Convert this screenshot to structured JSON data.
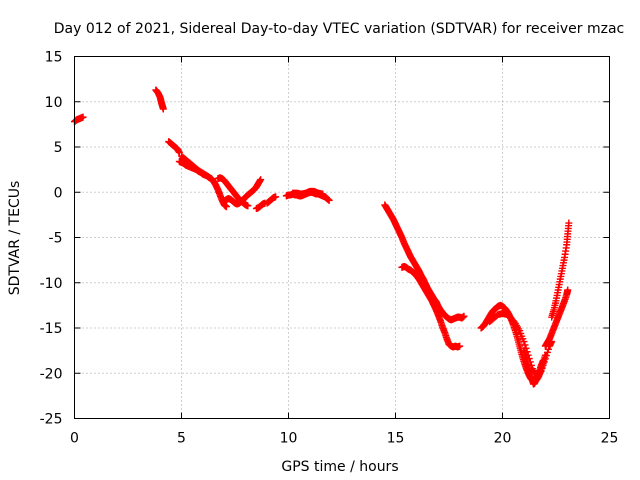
{
  "chart_data": {
    "type": "scatter",
    "title": "Day 012 of 2021, Sidereal Day-to-day VTEC variation (SDTVAR) for receiver mzac",
    "xlabel": "GPS time / hours",
    "ylabel": "SDTVAR / TECUs",
    "xlim": [
      0,
      25
    ],
    "ylim": [
      -25,
      15
    ],
    "xticks": [
      0,
      5,
      10,
      15,
      20,
      25
    ],
    "yticks": [
      -25,
      -20,
      -15,
      -10,
      -5,
      0,
      5,
      10,
      15
    ],
    "grid": true,
    "marker": "plus",
    "color": "#ff0000",
    "series": [
      {
        "name": "SDTVAR",
        "segments": [
          [
            [
              0.0,
              7.8
            ],
            [
              0.1,
              8.0
            ],
            [
              0.2,
              8.1
            ],
            [
              0.3,
              8.2
            ],
            [
              0.4,
              8.3
            ]
          ],
          [
            [
              3.8,
              11.3
            ],
            [
              3.9,
              11.0
            ],
            [
              4.0,
              10.5
            ],
            [
              4.05,
              10.0
            ],
            [
              4.1,
              9.6
            ],
            [
              4.15,
              9.2
            ]
          ],
          [
            [
              4.4,
              5.6
            ],
            [
              4.5,
              5.4
            ],
            [
              4.6,
              5.2
            ],
            [
              4.7,
              5.0
            ],
            [
              4.8,
              4.8
            ],
            [
              4.9,
              4.4
            ]
          ],
          [
            [
              4.9,
              3.4
            ],
            [
              5.0,
              3.3
            ],
            [
              5.1,
              3.2
            ],
            [
              5.2,
              3.0
            ],
            [
              5.3,
              2.9
            ],
            [
              5.4,
              2.8
            ],
            [
              5.5,
              2.7
            ],
            [
              5.6,
              2.6
            ],
            [
              5.7,
              2.5
            ],
            [
              5.8,
              2.3
            ],
            [
              5.9,
              2.2
            ],
            [
              6.0,
              2.0
            ],
            [
              6.1,
              1.9
            ],
            [
              6.2,
              1.8
            ],
            [
              6.3,
              1.6
            ],
            [
              6.4,
              1.5
            ],
            [
              6.5,
              1.2
            ],
            [
              6.6,
              0.8
            ],
            [
              6.7,
              0.3
            ],
            [
              6.8,
              -0.3
            ],
            [
              6.9,
              -0.9
            ],
            [
              7.0,
              -1.4
            ],
            [
              7.1,
              -1.6
            ]
          ],
          [
            [
              5.0,
              4.0
            ],
            [
              5.2,
              3.6
            ],
            [
              5.4,
              3.2
            ],
            [
              5.6,
              2.8
            ],
            [
              5.8,
              2.4
            ],
            [
              6.0,
              2.1
            ],
            [
              6.2,
              1.8
            ],
            [
              6.4,
              1.5
            ]
          ],
          [
            [
              6.7,
              1.5
            ],
            [
              6.8,
              1.6
            ],
            [
              6.9,
              1.5
            ],
            [
              7.0,
              1.3
            ],
            [
              7.1,
              1.0
            ],
            [
              7.2,
              0.7
            ],
            [
              7.3,
              0.4
            ],
            [
              7.4,
              0.1
            ],
            [
              7.5,
              -0.2
            ],
            [
              7.6,
              -0.5
            ],
            [
              7.7,
              -0.8
            ],
            [
              7.8,
              -1.0
            ],
            [
              7.9,
              -1.2
            ],
            [
              8.0,
              -1.4
            ],
            [
              8.1,
              -1.5
            ]
          ],
          [
            [
              7.0,
              -1.0
            ],
            [
              7.1,
              -0.8
            ],
            [
              7.2,
              -0.7
            ],
            [
              7.3,
              -0.8
            ],
            [
              7.4,
              -1.0
            ],
            [
              7.5,
              -1.2
            ],
            [
              7.6,
              -1.3
            ],
            [
              7.7,
              -1.2
            ],
            [
              7.8,
              -1.0
            ],
            [
              7.9,
              -0.8
            ],
            [
              8.0,
              -0.5
            ],
            [
              8.1,
              -0.3
            ],
            [
              8.2,
              -0.1
            ],
            [
              8.3,
              0.1
            ],
            [
              8.4,
              0.3
            ],
            [
              8.5,
              0.6
            ],
            [
              8.6,
              1.0
            ],
            [
              8.7,
              1.4
            ]
          ],
          [
            [
              8.5,
              -1.8
            ],
            [
              8.6,
              -1.7
            ],
            [
              8.7,
              -1.5
            ],
            [
              8.8,
              -1.3
            ],
            [
              8.9,
              -1.2
            ]
          ],
          [
            [
              9.0,
              -1.2
            ],
            [
              9.1,
              -1.0
            ],
            [
              9.2,
              -0.8
            ],
            [
              9.3,
              -0.6
            ],
            [
              9.4,
              -0.5
            ]
          ],
          [
            [
              9.9,
              -0.4
            ],
            [
              10.0,
              -0.3
            ],
            [
              10.1,
              -0.3
            ],
            [
              10.2,
              -0.2
            ],
            [
              10.3,
              -0.3
            ],
            [
              10.4,
              -0.3
            ],
            [
              10.5,
              -0.4
            ],
            [
              10.6,
              -0.4
            ],
            [
              10.7,
              -0.3
            ],
            [
              10.8,
              -0.2
            ],
            [
              10.9,
              -0.1
            ],
            [
              11.0,
              0.0
            ],
            [
              11.1,
              0.0
            ],
            [
              11.2,
              -0.1
            ],
            [
              11.3,
              -0.2
            ],
            [
              11.4,
              -0.2
            ],
            [
              11.5,
              -0.3
            ],
            [
              11.6,
              -0.4
            ],
            [
              11.7,
              -0.5
            ],
            [
              11.8,
              -0.7
            ],
            [
              11.9,
              -0.9
            ]
          ],
          [
            [
              10.2,
              -0.1
            ],
            [
              10.4,
              -0.1
            ],
            [
              10.6,
              -0.2
            ],
            [
              10.8,
              -0.1
            ],
            [
              11.0,
              0.1
            ],
            [
              11.2,
              0.1
            ],
            [
              11.4,
              -0.1
            ],
            [
              11.6,
              -0.2
            ]
          ],
          [
            [
              14.5,
              -1.4
            ],
            [
              14.6,
              -1.8
            ],
            [
              14.7,
              -2.2
            ],
            [
              14.8,
              -2.6
            ],
            [
              14.9,
              -3.0
            ],
            [
              15.0,
              -3.5
            ],
            [
              15.1,
              -4.0
            ],
            [
              15.2,
              -4.5
            ],
            [
              15.3,
              -5.0
            ],
            [
              15.4,
              -5.6
            ],
            [
              15.5,
              -6.1
            ],
            [
              15.6,
              -6.6
            ],
            [
              15.7,
              -7.1
            ],
            [
              15.8,
              -7.5
            ],
            [
              15.9,
              -7.9
            ],
            [
              16.0,
              -8.3
            ],
            [
              16.1,
              -8.7
            ],
            [
              16.2,
              -9.2
            ],
            [
              16.3,
              -9.6
            ],
            [
              16.4,
              -10.1
            ],
            [
              16.5,
              -10.6
            ],
            [
              16.6,
              -11.0
            ],
            [
              16.7,
              -11.4
            ],
            [
              16.8,
              -11.8
            ],
            [
              16.9,
              -12.1
            ],
            [
              17.0,
              -12.6
            ],
            [
              17.1,
              -13.0
            ],
            [
              17.2,
              -13.3
            ],
            [
              17.3,
              -13.6
            ],
            [
              17.4,
              -13.8
            ],
            [
              17.5,
              -14.0
            ],
            [
              17.6,
              -14.1
            ],
            [
              17.7,
              -14.0
            ],
            [
              17.8,
              -13.9
            ],
            [
              17.9,
              -13.8
            ],
            [
              18.0,
              -13.8
            ],
            [
              18.1,
              -13.9
            ],
            [
              18.2,
              -13.7
            ]
          ],
          [
            [
              15.3,
              -8.3
            ],
            [
              15.4,
              -8.2
            ],
            [
              15.5,
              -8.3
            ],
            [
              15.6,
              -8.5
            ],
            [
              15.7,
              -8.6
            ],
            [
              15.8,
              -8.8
            ],
            [
              15.9,
              -9.0
            ],
            [
              16.0,
              -9.3
            ],
            [
              16.1,
              -9.6
            ],
            [
              16.2,
              -10.0
            ],
            [
              16.3,
              -10.4
            ],
            [
              16.4,
              -10.8
            ],
            [
              16.5,
              -11.2
            ],
            [
              16.6,
              -11.6
            ],
            [
              16.7,
              -12.0
            ],
            [
              16.8,
              -12.5
            ],
            [
              16.9,
              -13.0
            ],
            [
              17.0,
              -13.6
            ],
            [
              17.1,
              -14.2
            ],
            [
              17.2,
              -14.9
            ],
            [
              17.3,
              -15.5
            ],
            [
              17.4,
              -16.2
            ],
            [
              17.5,
              -16.8
            ],
            [
              17.6,
              -17.0
            ],
            [
              17.7,
              -17.1
            ],
            [
              17.8,
              -17.0
            ],
            [
              17.9,
              -17.1
            ],
            [
              18.0,
              -17.0
            ]
          ],
          [
            [
              19.0,
              -15.0
            ],
            [
              19.1,
              -14.8
            ],
            [
              19.2,
              -14.5
            ],
            [
              19.3,
              -14.1
            ],
            [
              19.4,
              -13.7
            ],
            [
              19.5,
              -13.3
            ],
            [
              19.6,
              -13.0
            ],
            [
              19.7,
              -12.8
            ],
            [
              19.8,
              -12.6
            ],
            [
              19.9,
              -12.5
            ],
            [
              20.0,
              -12.6
            ],
            [
              20.1,
              -12.8
            ],
            [
              20.2,
              -13.1
            ],
            [
              20.3,
              -13.5
            ],
            [
              20.4,
              -14.0
            ],
            [
              20.5,
              -14.6
            ],
            [
              20.6,
              -15.3
            ],
            [
              20.7,
              -16.1
            ],
            [
              20.8,
              -17.0
            ],
            [
              20.9,
              -17.9
            ],
            [
              21.0,
              -18.7
            ],
            [
              21.1,
              -19.4
            ],
            [
              21.2,
              -20.0
            ],
            [
              21.3,
              -20.5
            ],
            [
              21.4,
              -20.8
            ],
            [
              21.5,
              -20.9
            ],
            [
              21.6,
              -20.7
            ],
            [
              21.7,
              -20.3
            ],
            [
              21.8,
              -19.7
            ],
            [
              21.9,
              -18.9
            ],
            [
              22.0,
              -18.0
            ]
          ],
          [
            [
              19.4,
              -14.3
            ],
            [
              19.6,
              -13.9
            ],
            [
              19.8,
              -13.5
            ],
            [
              20.0,
              -13.4
            ],
            [
              20.2,
              -13.5
            ],
            [
              20.4,
              -13.9
            ],
            [
              20.6,
              -14.5
            ],
            [
              20.8,
              -15.3
            ],
            [
              21.0,
              -16.5
            ],
            [
              21.2,
              -18.0
            ],
            [
              21.4,
              -19.5
            ],
            [
              21.6,
              -20.4
            ],
            [
              21.8,
              -19.8
            ],
            [
              22.0,
              -18.4
            ],
            [
              22.2,
              -17.0
            ],
            [
              22.3,
              -16.5
            ]
          ],
          [
            [
              21.0,
              -17.5
            ],
            [
              21.1,
              -18.3
            ],
            [
              21.2,
              -19.2
            ],
            [
              21.3,
              -20.0
            ],
            [
              21.4,
              -20.8
            ],
            [
              21.45,
              -21.2
            ],
            [
              21.5,
              -21.1
            ],
            [
              21.6,
              -20.6
            ],
            [
              21.7,
              -19.9
            ],
            [
              21.8,
              -19.2
            ],
            [
              21.9,
              -18.6
            ]
          ],
          [
            [
              22.0,
              -17.0
            ],
            [
              22.1,
              -16.6
            ],
            [
              22.2,
              -16.2
            ],
            [
              22.3,
              -15.6
            ],
            [
              22.4,
              -15.0
            ],
            [
              22.5,
              -14.4
            ],
            [
              22.6,
              -13.8
            ],
            [
              22.7,
              -13.2
            ],
            [
              22.8,
              -12.6
            ],
            [
              22.9,
              -12.0
            ],
            [
              23.0,
              -11.3
            ],
            [
              23.05,
              -10.8
            ]
          ],
          [
            [
              22.3,
              -13.8
            ],
            [
              22.4,
              -13.0
            ],
            [
              22.5,
              -12.0
            ],
            [
              22.6,
              -10.8
            ],
            [
              22.7,
              -9.6
            ],
            [
              22.8,
              -8.4
            ],
            [
              22.9,
              -7.2
            ],
            [
              23.0,
              -5.8
            ],
            [
              23.05,
              -4.6
            ],
            [
              23.1,
              -3.4
            ]
          ]
        ]
      }
    ]
  }
}
